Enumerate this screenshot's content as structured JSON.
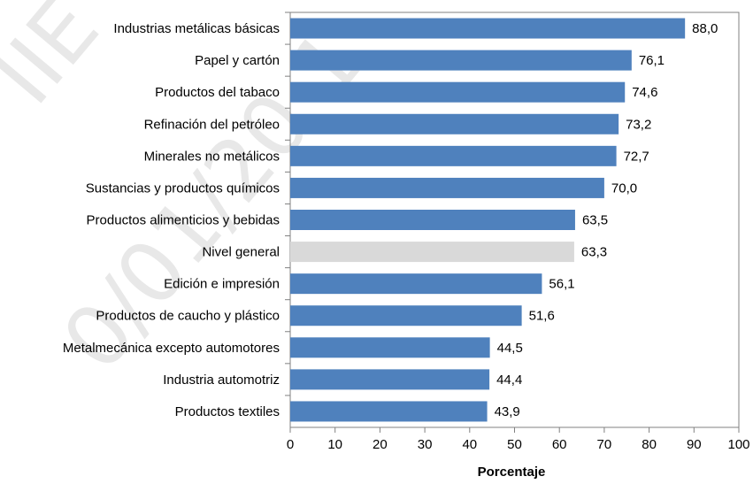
{
  "chart_data": {
    "type": "bar",
    "orientation": "horizontal",
    "categories": [
      "Industrias metálicas básicas",
      "Papel y cartón",
      "Productos del tabaco",
      "Refinación del petróleo",
      "Minerales no metálicos",
      "Sustancias y productos químicos",
      "Productos alimenticios y bebidas",
      "Nivel general",
      "Edición e impresión",
      "Productos de caucho y plástico",
      "Metalmecánica excepto automotores",
      "Industria automotriz",
      "Productos textiles"
    ],
    "values": [
      88.0,
      76.1,
      74.6,
      73.2,
      72.7,
      70.0,
      63.5,
      63.3,
      56.1,
      51.6,
      44.5,
      44.4,
      43.9
    ],
    "value_labels": [
      "88,0",
      "76,1",
      "74,6",
      "73,2",
      "72,7",
      "70,0",
      "63,5",
      "63,3",
      "56,1",
      "51,6",
      "44,5",
      "44,4",
      "43,9"
    ],
    "highlight_category": "Nivel general",
    "xlabel": "Porcentaje",
    "xlim": [
      0,
      100
    ],
    "xticks": [
      0,
      10,
      20,
      30,
      40,
      50,
      60,
      70,
      80,
      90,
      100
    ],
    "grid": false,
    "legend": "none",
    "colors": {
      "bar": "#4f81bd",
      "highlight": "#d9d9d9",
      "axis": "#808080"
    }
  },
  "watermark": {
    "lines": [
      "IIE",
      "0/01/20 1"
    ]
  }
}
